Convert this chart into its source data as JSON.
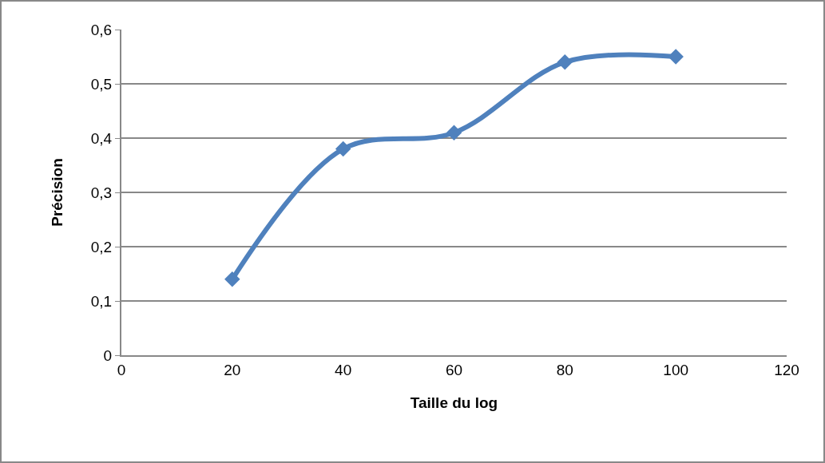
{
  "chart_data": {
    "type": "line",
    "xlabel": "Taille du log",
    "ylabel": "Précision",
    "x": [
      20,
      40,
      60,
      80,
      100
    ],
    "series": [
      {
        "color": "#4f81bd",
        "values": [
          0.14,
          0.38,
          0.41,
          0.54,
          0.55
        ]
      }
    ],
    "xlim": [
      0,
      120
    ],
    "xticks": [
      0,
      20,
      40,
      60,
      80,
      100,
      120
    ],
    "ylim": [
      0,
      0.6
    ],
    "yticks": [
      {
        "value": 0,
        "label": "0"
      },
      {
        "value": 0.1,
        "label": "0,1"
      },
      {
        "value": 0.2,
        "label": "0,2"
      },
      {
        "value": 0.3,
        "label": "0,3"
      },
      {
        "value": 0.4,
        "label": "0,4"
      },
      {
        "value": 0.5,
        "label": "0,5"
      },
      {
        "value": 0.6,
        "label": "0,6"
      }
    ],
    "grid": "y",
    "marker": "diamond",
    "line_style": "solid",
    "legend": false
  }
}
